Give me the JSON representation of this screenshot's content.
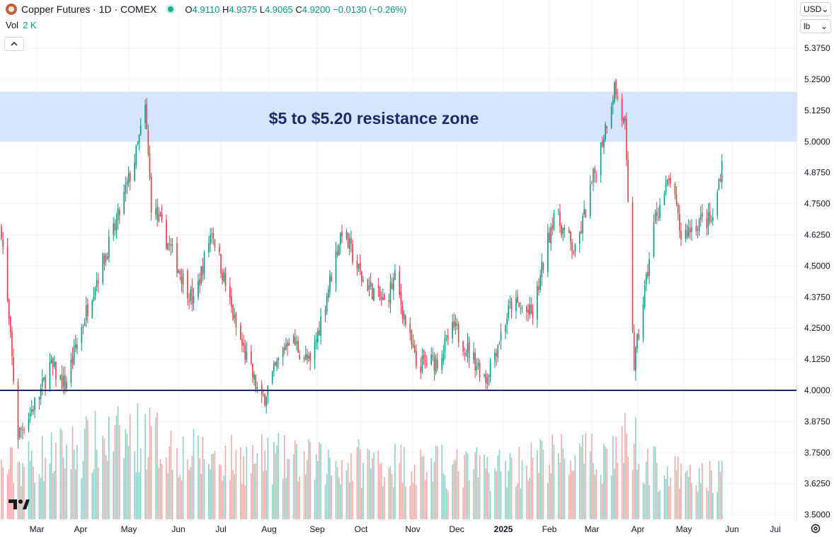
{
  "header": {
    "title": "Copper Futures · 1D · COMEX",
    "open_label": "O",
    "open": "4.9110",
    "high_label": "H",
    "high": "4.9375",
    "low_label": "L",
    "low": "4.9065",
    "close_label": "C",
    "close": "4.9200",
    "change": "−0.0130 (−0.26%)",
    "vol_label": "Vol",
    "vol_value": "2 K"
  },
  "controls": {
    "currency": "USD",
    "unit": "lb",
    "collapse_icon": "chevron-up-icon",
    "settings_icon": "gear-icon"
  },
  "colors": {
    "up": "#089981",
    "down": "#f23645",
    "up_vol": "#8fd0c6",
    "down_vol": "#f7a9a7",
    "zone": "#d6e4fc",
    "support": "#1a2b5f",
    "annotation": "#1a2b6b"
  },
  "chart_data": {
    "type": "candlestick",
    "y_ticks": [
      "5.3750",
      "5.2500",
      "5.1250",
      "5.0000",
      "4.8750",
      "4.7500",
      "4.6250",
      "4.5000",
      "4.3750",
      "4.2500",
      "4.1250",
      "4.0000",
      "3.8750",
      "3.7500",
      "3.6250",
      "3.5000"
    ],
    "ylim": [
      3.5,
      5.375
    ],
    "x_ticks": [
      "Mar",
      "Apr",
      "May",
      "Jun",
      "Jul",
      "Aug",
      "Sep",
      "Oct",
      "Nov",
      "Dec",
      "2025",
      "Feb",
      "Mar",
      "Apr",
      "May",
      "Jun",
      "Jul"
    ],
    "annotation": {
      "text": "$5 to $5.20 resistance zone",
      "zone_low": 5.0,
      "zone_high": 5.2
    },
    "support_level": 4.0,
    "series": [
      {
        "key": "ohlc",
        "points": [
          {
            "x": "2024-02-15",
            "y": 4.65
          },
          {
            "x": "2024-02-26",
            "y": 3.82
          },
          {
            "x": "2024-03-11",
            "y": 3.98
          },
          {
            "x": "2024-03-18",
            "y": 4.1
          },
          {
            "x": "2024-03-28",
            "y": 4.02
          },
          {
            "x": "2024-04-15",
            "y": 4.4
          },
          {
            "x": "2024-04-30",
            "y": 4.65
          },
          {
            "x": "2024-05-14",
            "y": 4.95
          },
          {
            "x": "2024-05-20",
            "y": 5.13
          },
          {
            "x": "2024-05-24",
            "y": 4.75
          },
          {
            "x": "2024-06-07",
            "y": 4.55
          },
          {
            "x": "2024-06-21",
            "y": 4.35
          },
          {
            "x": "2024-07-03",
            "y": 4.65
          },
          {
            "x": "2024-07-19",
            "y": 4.25
          },
          {
            "x": "2024-08-05",
            "y": 3.95
          },
          {
            "x": "2024-08-23",
            "y": 4.22
          },
          {
            "x": "2024-09-06",
            "y": 4.1
          },
          {
            "x": "2024-09-27",
            "y": 4.65
          },
          {
            "x": "2024-10-10",
            "y": 4.45
          },
          {
            "x": "2024-10-25",
            "y": 4.35
          },
          {
            "x": "2024-11-01",
            "y": 4.45
          },
          {
            "x": "2024-11-15",
            "y": 4.1
          },
          {
            "x": "2024-11-29",
            "y": 4.12
          },
          {
            "x": "2024-12-10",
            "y": 4.25
          },
          {
            "x": "2024-12-31",
            "y": 4.05
          },
          {
            "x": "2025-01-17",
            "y": 4.35
          },
          {
            "x": "2025-01-31",
            "y": 4.3
          },
          {
            "x": "2025-02-14",
            "y": 4.72
          },
          {
            "x": "2025-02-28",
            "y": 4.55
          },
          {
            "x": "2025-03-14",
            "y": 4.9
          },
          {
            "x": "2025-03-26",
            "y": 5.22
          },
          {
            "x": "2025-04-02",
            "y": 5.05
          },
          {
            "x": "2025-04-08",
            "y": 4.1
          },
          {
            "x": "2025-04-22",
            "y": 4.7
          },
          {
            "x": "2025-05-02",
            "y": 4.85
          },
          {
            "x": "2025-05-09",
            "y": 4.62
          },
          {
            "x": "2025-05-21",
            "y": 4.68
          },
          {
            "x": "2025-05-30",
            "y": 4.68
          },
          {
            "x": "2025-06-05",
            "y": 4.92
          }
        ]
      },
      {
        "key": "volume",
        "points": [
          {
            "x": "2024-02-15",
            "y": 2.0
          },
          {
            "x": "2024-03-15",
            "y": 2.5
          },
          {
            "x": "2024-04-15",
            "y": 3.0
          },
          {
            "x": "2024-05-20",
            "y": 3.4
          },
          {
            "x": "2024-06-15",
            "y": 2.6
          },
          {
            "x": "2024-07-15",
            "y": 2.4
          },
          {
            "x": "2024-08-15",
            "y": 2.4
          },
          {
            "x": "2024-09-15",
            "y": 2.2
          },
          {
            "x": "2024-10-15",
            "y": 2.3
          },
          {
            "x": "2024-11-15",
            "y": 2.2
          },
          {
            "x": "2024-12-15",
            "y": 2.0
          },
          {
            "x": "2025-01-15",
            "y": 2.1
          },
          {
            "x": "2025-02-15",
            "y": 2.5
          },
          {
            "x": "2025-03-15",
            "y": 2.4
          },
          {
            "x": "2025-04-07",
            "y": 3.2
          },
          {
            "x": "2025-04-20",
            "y": 2.1
          },
          {
            "x": "2025-05-15",
            "y": 1.6
          },
          {
            "x": "2025-06-05",
            "y": 1.8
          }
        ]
      }
    ]
  }
}
